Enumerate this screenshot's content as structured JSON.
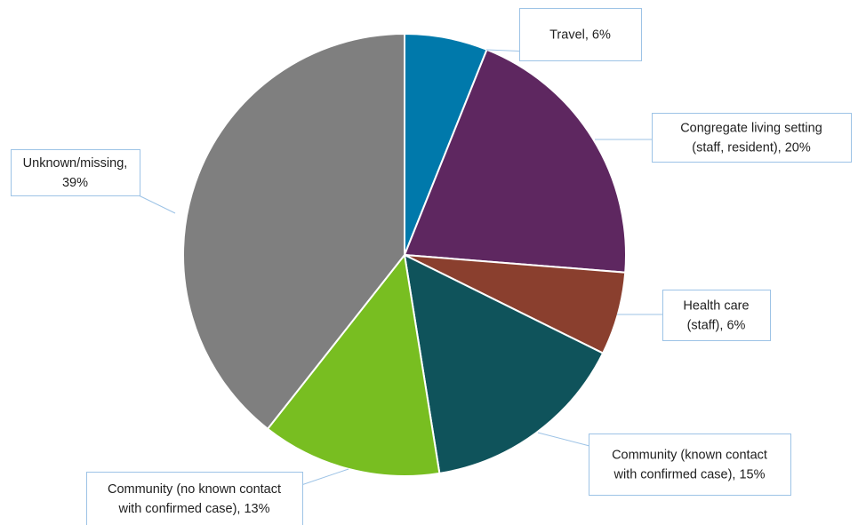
{
  "chart_data": {
    "type": "pie",
    "title": "",
    "slices": [
      {
        "label_lines": [
          "Travel, 6%"
        ],
        "value": 6,
        "color": "#0079ab"
      },
      {
        "label_lines": [
          "Congregate living setting",
          "(staff, resident), 20%"
        ],
        "value": 20,
        "color": "#5e2760"
      },
      {
        "label_lines": [
          "Health care",
          "(staff), 6%"
        ],
        "value": 6,
        "color": "#8a3f2e"
      },
      {
        "label_lines": [
          "Community (known contact",
          "with confirmed case), 15%"
        ],
        "value": 15,
        "color": "#0f535b"
      },
      {
        "label_lines": [
          "Community (no known contact",
          "with confirmed case), 13%"
        ],
        "value": 13,
        "color": "#78be21"
      },
      {
        "label_lines": [
          "Unknown/missing,",
          "39%"
        ],
        "value": 39,
        "color": "#7f7f7f"
      }
    ],
    "start_angle": "12 o'clock",
    "direction": "clockwise",
    "legend": "none",
    "labels": "data callouts with leader lines"
  }
}
